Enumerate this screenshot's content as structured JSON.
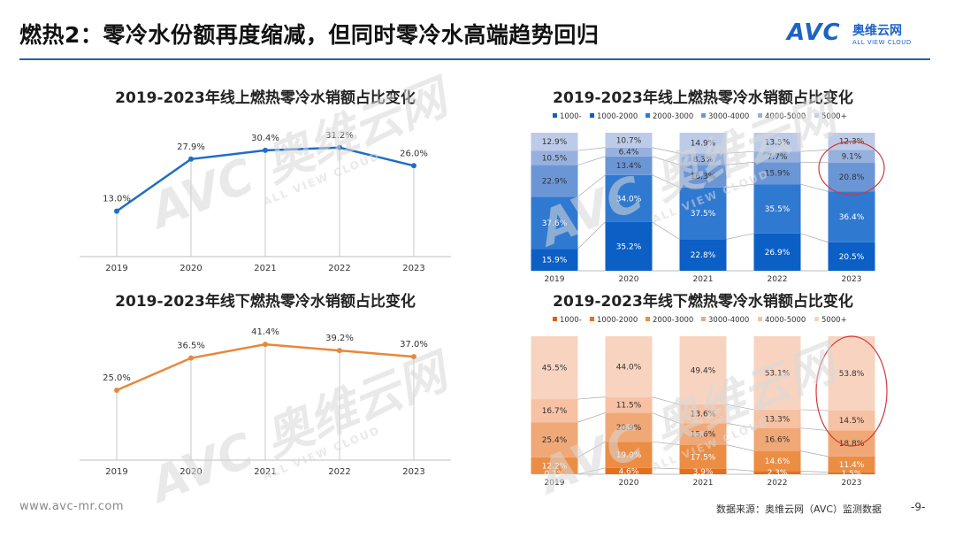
{
  "header": {
    "title": "燃热2：零冷水份额再度缩减，但同时零冷水高端趋势回归",
    "logo_text": "AVC",
    "logo_cn": "奥维云网",
    "logo_en": "ALL VIEW CLOUD"
  },
  "watermark": {
    "text": "AVC 奥维云网",
    "sub": "ALL VIEW CLOUD"
  },
  "footer": {
    "website": "www.avc-mr.com",
    "source": "数据来源：奥维云网（AVC）监测数据",
    "page": "-9-"
  },
  "colors": {
    "online_line": "#1f6ec6",
    "offline_line": "#e8873a",
    "online_stack": [
      "#1a5fb4",
      "#0b5fc5",
      "#2f79d1",
      "#6b96d6",
      "#97b1de",
      "#bdcbe8"
    ],
    "offline_stack": [
      "#d9620f",
      "#e46f1c",
      "#ec8d44",
      "#f1a877",
      "#f6c2a3",
      "#f8d4c0"
    ],
    "highlight": "#d33a3a"
  },
  "chart_data": [
    {
      "type": "line",
      "title": "2019-2023年线上燃热零冷水销额占比变化",
      "categories": [
        "2019",
        "2020",
        "2021",
        "2022",
        "2023"
      ],
      "values": [
        13.0,
        27.9,
        30.4,
        31.2,
        26.0
      ],
      "labels": [
        "13.0%",
        "27.9%",
        "30.4%",
        "31.2%",
        "26.0%"
      ],
      "ylim": [
        0,
        40
      ]
    },
    {
      "type": "line",
      "title": "2019-2023年线下燃热零冷水销额占比变化",
      "categories": [
        "2019",
        "2020",
        "2021",
        "2022",
        "2023"
      ],
      "values": [
        25.0,
        36.5,
        41.4,
        39.2,
        37.0
      ],
      "labels": [
        "25.0%",
        "36.5%",
        "41.4%",
        "39.2%",
        "37.0%"
      ],
      "ylim": [
        0,
        50
      ]
    },
    {
      "type": "bar",
      "stacked": true,
      "title": "2019-2023年线上燃热零冷水销额占比变化",
      "categories": [
        "2019",
        "2020",
        "2021",
        "2022",
        "2023"
      ],
      "legend": [
        "1000-",
        "1000-2000",
        "2000-3000",
        "3000-4000",
        "4000-5000",
        "5000+"
      ],
      "series": [
        {
          "name": "1000-",
          "values": [
            0,
            0,
            0,
            0,
            0
          ],
          "labels": [
            "",
            "",
            "",
            "",
            ""
          ]
        },
        {
          "name": "1000-2000",
          "values": [
            15.9,
            35.2,
            22.8,
            26.9,
            20.5
          ],
          "labels": [
            "15.9%",
            "35.2%",
            "22.8%",
            "26.9%",
            "20.5%"
          ]
        },
        {
          "name": "2000-3000",
          "values": [
            37.6,
            34.0,
            37.5,
            35.5,
            36.4
          ],
          "labels": [
            "37.6%",
            "34.0%",
            "37.5%",
            "35.5%",
            "36.4%"
          ]
        },
        {
          "name": "3000-4000",
          "values": [
            22.9,
            13.4,
            16.3,
            15.9,
            20.8
          ],
          "labels": [
            "22.9%",
            "13.4%",
            "16.3%",
            "15.9%",
            "20.8%"
          ]
        },
        {
          "name": "4000-5000",
          "values": [
            10.5,
            6.4,
            8.3,
            7.7,
            9.1
          ],
          "labels": [
            "10.5%",
            "6.4%",
            "8.3%",
            "7.7%",
            "9.1%"
          ]
        },
        {
          "name": "5000+",
          "values": [
            12.9,
            10.7,
            14.9,
            13.5,
            12.3
          ],
          "labels": [
            "12.9%",
            "10.7%",
            "14.9%",
            "13.5%",
            "12.3%"
          ]
        }
      ],
      "highlight_category": "2023",
      "ylim": [
        0,
        100
      ]
    },
    {
      "type": "bar",
      "stacked": true,
      "title": "2019-2023年线下燃热零冷水销额占比变化",
      "categories": [
        "2019",
        "2020",
        "2021",
        "2022",
        "2023"
      ],
      "legend": [
        "1000-",
        "1000-2000",
        "2000-3000",
        "3000-4000",
        "4000-5000",
        "5000+"
      ],
      "series": [
        {
          "name": "1000-",
          "values": [
            0.1,
            0,
            0,
            0,
            0
          ],
          "labels": [
            "0.1%",
            "",
            "",
            "",
            ""
          ]
        },
        {
          "name": "1000-2000",
          "values": [
            0,
            4.6,
            3.9,
            2.3,
            1.5
          ],
          "labels": [
            "",
            "4.6%",
            "3.9%",
            "2.3%",
            "1.5%"
          ]
        },
        {
          "name": "2000-3000",
          "values": [
            12.2,
            19.0,
            17.5,
            14.6,
            11.4
          ],
          "labels": [
            "12.2%",
            "19.0%",
            "17.5%",
            "14.6%",
            "11.4%"
          ]
        },
        {
          "name": "3000-4000",
          "values": [
            25.4,
            20.9,
            15.6,
            16.6,
            18.8
          ],
          "labels": [
            "25.4%",
            "20.9%",
            "15.6%",
            "16.6%",
            "18.8%"
          ]
        },
        {
          "name": "4000-5000",
          "values": [
            16.7,
            11.5,
            13.6,
            13.3,
            14.5
          ],
          "labels": [
            "16.7%",
            "11.5%",
            "13.6%",
            "13.3%",
            "14.5%"
          ]
        },
        {
          "name": "5000+",
          "values": [
            45.5,
            44.0,
            49.4,
            53.1,
            53.8
          ],
          "labels": [
            "45.5%",
            "44.0%",
            "49.4%",
            "53.1%",
            "53.8%"
          ]
        }
      ],
      "highlight_category": "2023",
      "ylim": [
        0,
        100
      ]
    }
  ]
}
